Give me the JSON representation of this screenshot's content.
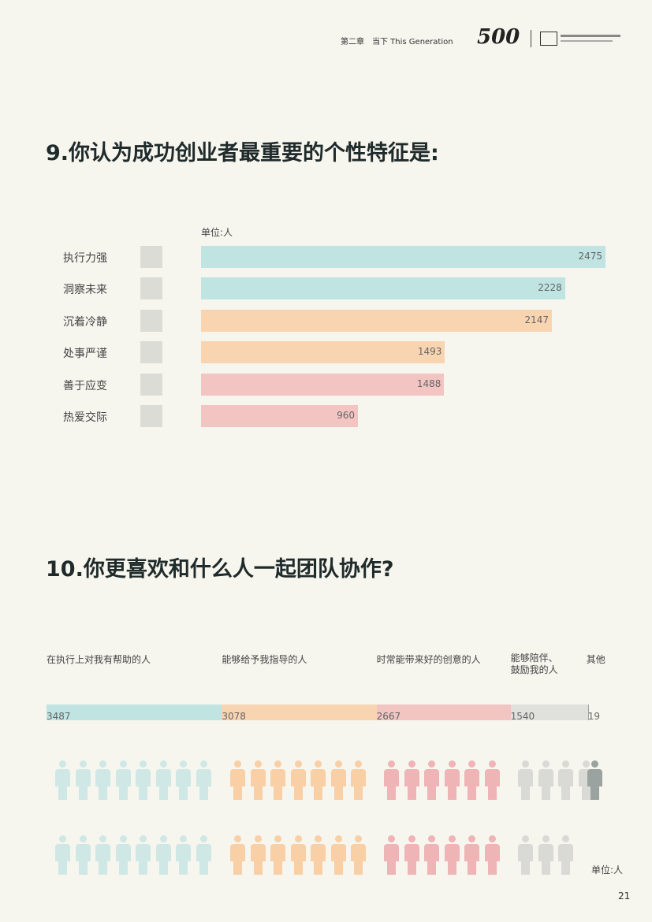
{
  "header": {
    "chapter": "第二章　当下  This Generation",
    "logo": "500"
  },
  "page_number": "21",
  "chart_data": [
    {
      "type": "bar",
      "orientation": "horizontal",
      "title": "9.你认为成功创业者最重要的个性特征是:",
      "unit": "单位:人",
      "categories": [
        "执行力强",
        "洞察未来",
        "沉着冷静",
        "处事严谨",
        "善于应变",
        "热爱交际"
      ],
      "values": [
        2475,
        2228,
        2147,
        1493,
        1488,
        960
      ],
      "colors": [
        "#bfe4e2",
        "#bfe4e2",
        "#f9d4b1",
        "#f9d4b1",
        "#f2c5c3",
        "#f2c5c3"
      ]
    },
    {
      "type": "stacked_bar",
      "title": "10.你更喜欢和什么人一起团队协作?",
      "unit": "单位:人",
      "categories": [
        "在执行上对我有帮助的人",
        "能够给予我指导的人",
        "时常能带来好的创意的人",
        "能够陪伴、鼓励我的人",
        "其他"
      ],
      "values": [
        3487,
        3078,
        2667,
        1540,
        19
      ],
      "colors": [
        "#bfe4e2",
        "#f9d4b1",
        "#f2c5c3",
        "#e0e0dc",
        "#9aa39f"
      ]
    }
  ]
}
